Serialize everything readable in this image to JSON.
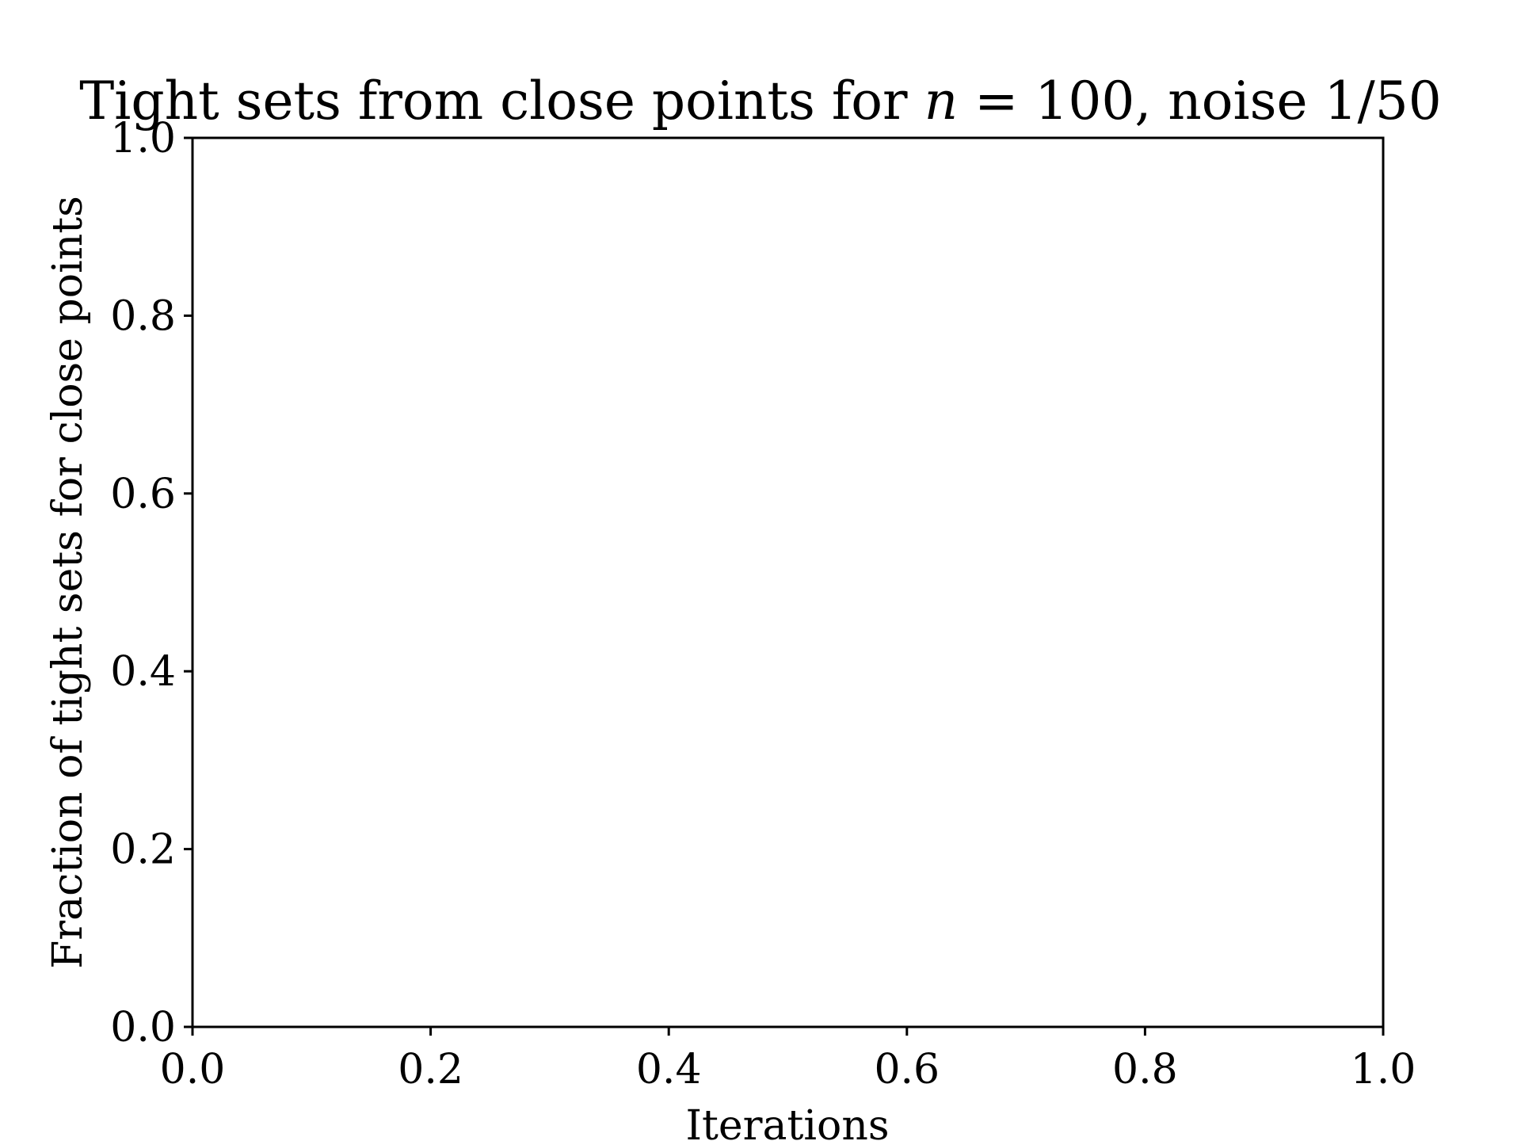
{
  "chart_data": {
    "type": "line",
    "title": {
      "prefix": "Tight sets from close points for ",
      "var": "n",
      "suffix": " = 100, noise 1/50"
    },
    "xlabel": "Iterations",
    "ylabel": "Fraction of tight sets for close points",
    "xlim": [
      0.0,
      1.0
    ],
    "ylim": [
      0.0,
      1.0
    ],
    "xticks": [
      "0.0",
      "0.2",
      "0.4",
      "0.6",
      "0.8",
      "1.0"
    ],
    "yticks": [
      "0.0",
      "0.2",
      "0.4",
      "0.6",
      "0.8",
      "1.0"
    ],
    "grid": false,
    "series": []
  }
}
